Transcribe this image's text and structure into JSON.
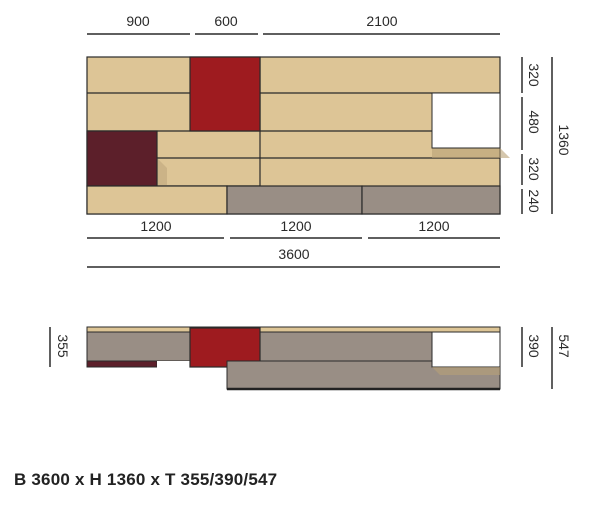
{
  "colors": {
    "oak": "#DDC596",
    "oak_edge": "#B9A277",
    "red": "#9E1B1F",
    "burgundy": "#5C1F2A",
    "grey": "#998E85",
    "white": "#FFFFFF",
    "line": "#2a2a2a"
  },
  "front_view": {
    "top_dims": [
      "900",
      "600",
      "2100"
    ],
    "right_dims": [
      "320",
      "480",
      "320",
      "240"
    ],
    "height_total": "1360",
    "bottom_dims": [
      "1200",
      "1200",
      "1200"
    ],
    "width_total": "3600"
  },
  "top_view": {
    "left_depth": "355",
    "right_depths": [
      "390",
      "547"
    ]
  },
  "caption": "B 3600 x H 1360 x T 355/390/547"
}
